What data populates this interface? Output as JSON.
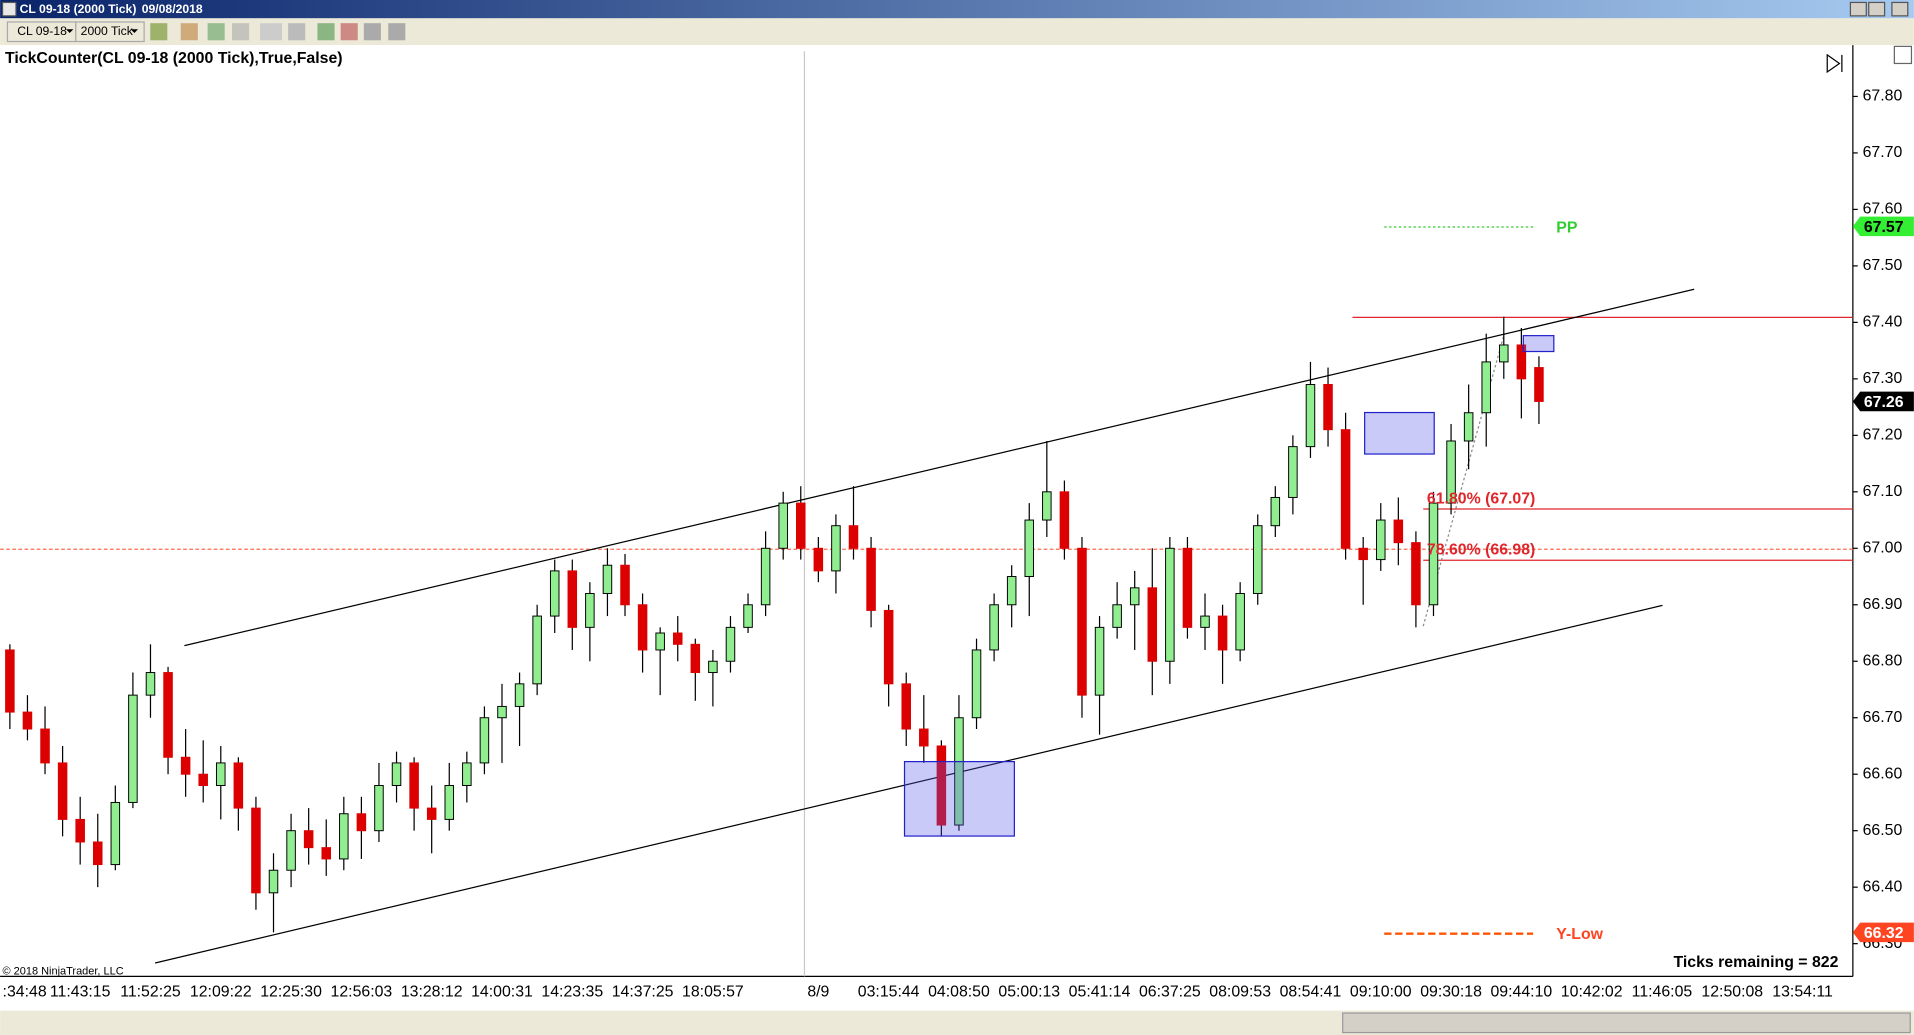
{
  "window": {
    "title": "CL 09-18 (2000 Tick)",
    "date": "09/08/2018",
    "instrument": "CL 09-18",
    "interval": "2000 Tick",
    "indicator": "TickCounter(CL 09-18 (2000 Tick),True,False)",
    "ticks_remaining": "Ticks remaining = 822",
    "copyright": "© 2018 NinjaTrader, LLC"
  },
  "chart_data": {
    "type": "candlestick",
    "categories": [
      ":34:48",
      null,
      null,
      null,
      "11:43:15",
      null,
      null,
      null,
      "11:52:25",
      null,
      null,
      null,
      "12:09:22",
      null,
      null,
      null,
      "12:25:30",
      null,
      null,
      null,
      "12:56:03",
      null,
      null,
      null,
      "13:28:12",
      null,
      null,
      null,
      "14:00:31",
      null,
      null,
      null,
      "14:23:35",
      null,
      null,
      null,
      "14:37:25",
      null,
      null,
      null,
      "18:05:57",
      null,
      null,
      null,
      null,
      null,
      "8/9",
      null,
      null,
      null,
      "03:15:44",
      null,
      null,
      null,
      "04:08:50",
      null,
      null,
      null,
      "05:00:13",
      null,
      null,
      null,
      "05:41:14",
      null,
      null,
      null,
      "06:37:25",
      null,
      null,
      null,
      "08:09:53",
      null,
      null,
      null,
      "08:54:41",
      null,
      null,
      null,
      "09:10:00",
      null,
      null,
      null,
      "09:30:18",
      null,
      null,
      null,
      "09:44:10",
      null,
      null,
      null,
      "10:42:02",
      null,
      null,
      null,
      "11:46:05",
      null,
      null,
      null,
      "12:50:08",
      null,
      null,
      null,
      "13:54:11"
    ],
    "open": [
      66.82,
      66.71,
      66.68,
      66.62,
      66.52,
      66.48,
      66.44,
      66.55,
      66.74,
      66.78,
      66.63,
      66.6,
      66.58,
      66.62,
      66.54,
      66.39,
      66.43,
      66.5,
      66.47,
      66.45,
      66.53,
      66.5,
      66.58,
      66.62,
      66.54,
      66.52,
      66.58,
      66.62,
      66.7,
      66.72,
      66.76,
      66.88,
      66.96,
      66.86,
      66.92,
      66.97,
      66.9,
      66.82,
      66.85,
      66.83,
      66.78,
      66.8,
      66.86,
      66.9,
      67.0,
      67.08,
      67.0,
      66.96,
      67.04,
      67.0,
      66.89,
      66.76,
      66.68,
      66.65,
      66.51,
      66.7,
      66.82,
      66.9,
      66.95,
      67.05,
      67.1,
      67.0,
      66.74,
      66.86,
      66.9,
      66.93,
      66.8,
      67.0,
      66.86,
      66.88,
      66.82,
      66.92,
      67.04,
      67.09,
      67.18,
      67.29,
      67.21,
      67.0,
      66.98,
      67.05,
      67.01,
      66.9,
      67.08,
      67.19,
      67.24,
      67.33,
      67.36,
      67.32,
      null,
      null,
      null,
      null,
      null,
      null,
      null,
      null,
      null,
      null,
      null,
      null,
      null,
      null,
      null
    ],
    "high": [
      66.83,
      66.74,
      66.72,
      66.65,
      66.56,
      66.53,
      66.58,
      66.78,
      66.83,
      66.79,
      66.68,
      66.66,
      66.65,
      66.63,
      66.56,
      66.46,
      66.53,
      66.54,
      66.52,
      66.56,
      66.56,
      66.62,
      66.64,
      66.63,
      66.58,
      66.62,
      66.64,
      66.72,
      66.76,
      66.78,
      66.9,
      66.98,
      66.98,
      66.94,
      67.0,
      66.99,
      66.92,
      66.86,
      66.88,
      66.84,
      66.82,
      66.88,
      66.92,
      67.03,
      67.1,
      67.11,
      67.02,
      67.06,
      67.11,
      67.02,
      66.9,
      66.78,
      66.74,
      66.66,
      66.74,
      66.84,
      66.92,
      66.97,
      67.08,
      67.19,
      67.12,
      67.02,
      66.88,
      66.94,
      66.96,
      67.0,
      67.02,
      67.02,
      66.92,
      66.9,
      66.94,
      67.06,
      67.11,
      67.2,
      67.33,
      67.32,
      67.24,
      67.02,
      67.08,
      67.09,
      67.03,
      67.1,
      67.22,
      67.29,
      67.38,
      67.41,
      67.39,
      67.34,
      null,
      null,
      null,
      null,
      null,
      null,
      null,
      null,
      null,
      null,
      null,
      null,
      null,
      null,
      null
    ],
    "low": [
      66.68,
      66.66,
      66.6,
      66.49,
      66.44,
      66.4,
      66.43,
      66.54,
      66.7,
      66.6,
      66.56,
      66.55,
      66.52,
      66.5,
      66.36,
      66.32,
      66.4,
      66.44,
      66.42,
      66.43,
      66.45,
      66.48,
      66.55,
      66.5,
      66.46,
      66.5,
      66.55,
      66.6,
      66.62,
      66.65,
      66.74,
      66.85,
      66.82,
      66.8,
      66.88,
      66.88,
      66.78,
      66.74,
      66.8,
      66.73,
      66.72,
      66.78,
      66.85,
      66.88,
      66.98,
      66.98,
      66.94,
      66.92,
      66.98,
      66.86,
      66.72,
      66.65,
      66.62,
      66.49,
      66.5,
      66.68,
      66.8,
      66.86,
      66.88,
      67.02,
      66.98,
      66.7,
      66.67,
      66.84,
      66.82,
      66.74,
      66.76,
      66.84,
      66.82,
      66.76,
      66.8,
      66.9,
      67.02,
      67.06,
      67.16,
      67.18,
      66.98,
      66.9,
      66.96,
      66.97,
      66.86,
      66.88,
      67.06,
      67.14,
      67.18,
      67.3,
      67.23,
      67.22,
      null,
      null,
      null,
      null,
      null,
      null,
      null,
      null,
      null,
      null,
      null,
      null,
      null,
      null,
      null
    ],
    "close": [
      66.71,
      66.68,
      66.62,
      66.52,
      66.48,
      66.44,
      66.55,
      66.74,
      66.78,
      66.63,
      66.6,
      66.58,
      66.62,
      66.54,
      66.39,
      66.43,
      66.5,
      66.47,
      66.45,
      66.53,
      66.5,
      66.58,
      66.62,
      66.54,
      66.52,
      66.58,
      66.62,
      66.7,
      66.72,
      66.76,
      66.88,
      66.96,
      66.86,
      66.92,
      66.97,
      66.9,
      66.82,
      66.85,
      66.83,
      66.78,
      66.8,
      66.86,
      66.9,
      67.0,
      67.08,
      67.0,
      66.96,
      67.04,
      67.0,
      66.89,
      66.76,
      66.68,
      66.65,
      66.51,
      66.7,
      66.82,
      66.9,
      66.95,
      67.05,
      67.1,
      67.0,
      66.74,
      66.86,
      66.9,
      66.93,
      66.8,
      67.0,
      66.86,
      66.88,
      66.82,
      66.92,
      67.04,
      67.09,
      67.18,
      67.29,
      67.21,
      67.0,
      66.98,
      67.05,
      67.01,
      66.9,
      67.08,
      67.19,
      67.24,
      67.33,
      67.36,
      67.3,
      67.26,
      null,
      null,
      null,
      null,
      null,
      null,
      null,
      null,
      null,
      null,
      null,
      null,
      null,
      null,
      null
    ],
    "up_color": "#90ee90",
    "down_color": "#dc0000",
    "ylim": [
      66.242,
      67.88
    ],
    "yticks": [
      {
        "value": 66.3,
        "label": "66.30"
      },
      {
        "value": 66.4,
        "label": "66.40"
      },
      {
        "value": 66.5,
        "label": "66.50"
      },
      {
        "value": 66.6,
        "label": "66.60"
      },
      {
        "value": 66.7,
        "label": "66.70"
      },
      {
        "value": 66.8,
        "label": "66.80"
      },
      {
        "value": 66.9,
        "label": "66.90"
      },
      {
        "value": 67,
        "label": "67.00"
      },
      {
        "value": 67.1,
        "label": "67.10"
      },
      {
        "value": 67.2,
        "label": "67.20"
      },
      {
        "value": 67.3,
        "label": "67.30"
      },
      {
        "value": 67.4,
        "label": "67.40"
      },
      {
        "value": 67.5,
        "label": "67.50"
      },
      {
        "value": 67.6,
        "label": "67.60"
      },
      {
        "value": 67.7,
        "label": "67.70"
      },
      {
        "value": 67.8,
        "label": "67.80"
      }
    ],
    "price_markers": [
      {
        "value": 67.57,
        "color": "#33ee33",
        "text_color": "#000000"
      },
      {
        "value": 67.26,
        "color": "#000000",
        "text_color": "#ffffff"
      },
      {
        "value": 66.32,
        "color": "#ff4422",
        "text_color": "#ffffff"
      }
    ],
    "annotations": {
      "pp": "PP",
      "y_low": "Y-Low",
      "fib_618": "61.80% (67.07)",
      "fib_786": "78.60% (66.98)"
    }
  }
}
